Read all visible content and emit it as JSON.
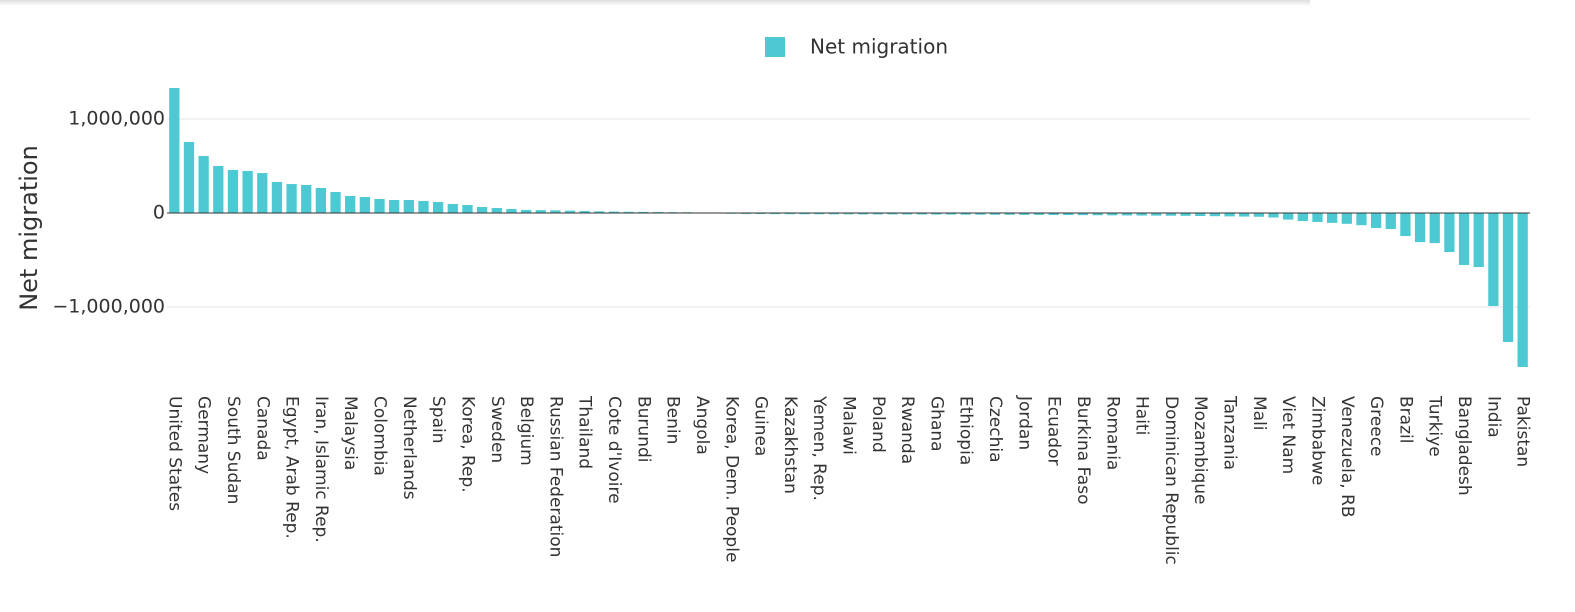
{
  "chart_data": {
    "type": "bar",
    "legend": "Net migration",
    "y_label": "Net migration",
    "color": "#4cc9d2",
    "categories": [
      "United States",
      null,
      "Germany",
      null,
      "South Sudan",
      null,
      "Canada",
      null,
      "Egypt, Arab Rep.",
      null,
      "Iran, Islamic Rep.",
      null,
      "Malaysia",
      null,
      "Colombia",
      null,
      "Netherlands",
      null,
      "Spain",
      null,
      "Korea, Rep.",
      null,
      "Sweden",
      null,
      "Belgium",
      null,
      "Russian Federation",
      null,
      "Thailand",
      null,
      "Cote d'Ivoire",
      null,
      "Burundi",
      null,
      "Benin",
      null,
      "Angola",
      null,
      "Korea, Dem. People",
      null,
      "Guinea",
      null,
      "Kazakhstan",
      null,
      "Yemen, Rep.",
      null,
      "Malawi",
      null,
      "Poland",
      null,
      "Rwanda",
      null,
      "Ghana",
      null,
      "Ethiopia",
      null,
      "Czechia",
      null,
      "Jordan",
      null,
      "Ecuador",
      null,
      "Burkina Faso",
      null,
      "Romania",
      null,
      "Haiti",
      null,
      "Dominican Republic",
      null,
      "Mozambique",
      null,
      "Tanzania",
      null,
      "Mali",
      null,
      "Viet Nam",
      null,
      "Zimbabwe",
      null,
      "Venezuela, RB",
      null,
      "Greece",
      null,
      "Brazil",
      null,
      "Turkiye",
      null,
      "Bangladesh",
      null,
      "India",
      null,
      "Pakistan"
    ],
    "values": [
      1330000,
      755000,
      606000,
      500000,
      457000,
      447000,
      425000,
      330000,
      308000,
      298000,
      266000,
      223000,
      181000,
      170000,
      149000,
      138000,
      138000,
      128000,
      117000,
      96000,
      85000,
      64000,
      53000,
      43000,
      32000,
      30000,
      28000,
      25000,
      22000,
      18000,
      15000,
      13000,
      12000,
      10000,
      9000,
      8000,
      6000,
      5000,
      -8000,
      -10000,
      -11000,
      -12000,
      -12000,
      -13000,
      -13000,
      -14000,
      -14000,
      -15000,
      -15000,
      -15000,
      -16000,
      -16000,
      -17000,
      -17000,
      -18000,
      -18000,
      -19000,
      -19000,
      -20000,
      -20000,
      -21000,
      -22000,
      -23000,
      -24000,
      -25000,
      -26000,
      -27000,
      -28000,
      -29000,
      -30000,
      -32000,
      -34000,
      -36000,
      -38000,
      -40000,
      -48000,
      -70000,
      -85000,
      -95000,
      -105000,
      -115000,
      -130000,
      -160000,
      -170000,
      -245000,
      -310000,
      -320000,
      -415000,
      -553000,
      -575000,
      -990000,
      -1372000,
      -1638000
    ],
    "ylim": [
      -1700000,
      1400000
    ],
    "yticks": [
      {
        "value": -1000000,
        "label": "−1,000,000"
      },
      0,
      {
        "value": 1000000,
        "label": "1,000,000"
      }
    ],
    "grid": true
  }
}
